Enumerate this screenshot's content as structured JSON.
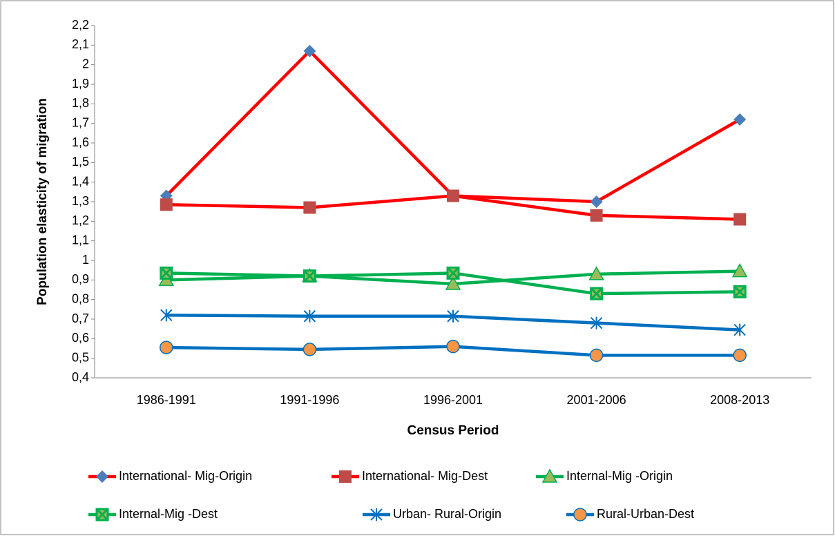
{
  "chart_data": {
    "type": "line",
    "x_label": "Census Period",
    "y_label": "Population elasticity of migration",
    "categories": [
      "1986-1991",
      "1991-1996",
      "1996-2001",
      "2001-2006",
      "2008-2013"
    ],
    "ylim": [
      0.4,
      2.2
    ],
    "yticks": [
      {
        "value": 0.4,
        "label": "0,4"
      },
      {
        "value": 0.5,
        "label": "0,5"
      },
      {
        "value": 0.6,
        "label": "0,6"
      },
      {
        "value": 0.7,
        "label": "0,7"
      },
      {
        "value": 0.8,
        "label": "0,8"
      },
      {
        "value": 0.9,
        "label": "0,9"
      },
      1,
      {
        "value": 1.1,
        "label": "1,1"
      },
      {
        "value": 1.2,
        "label": "1,2"
      },
      {
        "value": 1.3,
        "label": "1,3"
      },
      {
        "value": 1.4,
        "label": "1,4"
      },
      {
        "value": 1.5,
        "label": "1,5"
      },
      {
        "value": 1.6,
        "label": "1,6"
      },
      {
        "value": 1.7,
        "label": "1,7"
      },
      {
        "value": 1.8,
        "label": "1,8"
      },
      {
        "value": 1.9,
        "label": "1,9"
      },
      2,
      {
        "value": 2.1,
        "label": "2,1"
      },
      {
        "value": 2.2,
        "label": "2,2"
      }
    ],
    "grid": false,
    "series": [
      {
        "name": "International- Mig-Origin",
        "color": "#ff0000",
        "marker": "diamond",
        "marker_color": "#4a7ebb",
        "values": [
          1.33,
          2.07,
          1.33,
          1.3,
          1.72
        ]
      },
      {
        "name": "International- Mig-Dest",
        "color": "#ff0000",
        "marker": "square",
        "marker_color": "#be4b48",
        "values": [
          1.285,
          1.27,
          1.33,
          1.23,
          1.21
        ]
      },
      {
        "name": "Internal-Mig -Origin",
        "color": "#00b050",
        "marker": "triangle",
        "marker_color": "#9bbb59",
        "values": [
          0.9,
          0.92,
          0.88,
          0.93,
          0.945
        ]
      },
      {
        "name": "Internal-Mig -Dest",
        "color": "#00b050",
        "marker": "square-x",
        "marker_color": "#00b050",
        "values": [
          0.935,
          0.92,
          0.935,
          0.83,
          0.84
        ]
      },
      {
        "name": "Urban- Rural-Origin",
        "color": "#0070c0",
        "marker": "asterisk",
        "marker_color": "#0070c0",
        "values": [
          0.72,
          0.715,
          0.715,
          0.68,
          0.645
        ]
      },
      {
        "name": "Rural-Urban-Dest",
        "color": "#0070c0",
        "marker": "circle",
        "marker_color": "#f79646",
        "values": [
          0.555,
          0.545,
          0.56,
          0.515,
          0.515
        ]
      }
    ]
  }
}
